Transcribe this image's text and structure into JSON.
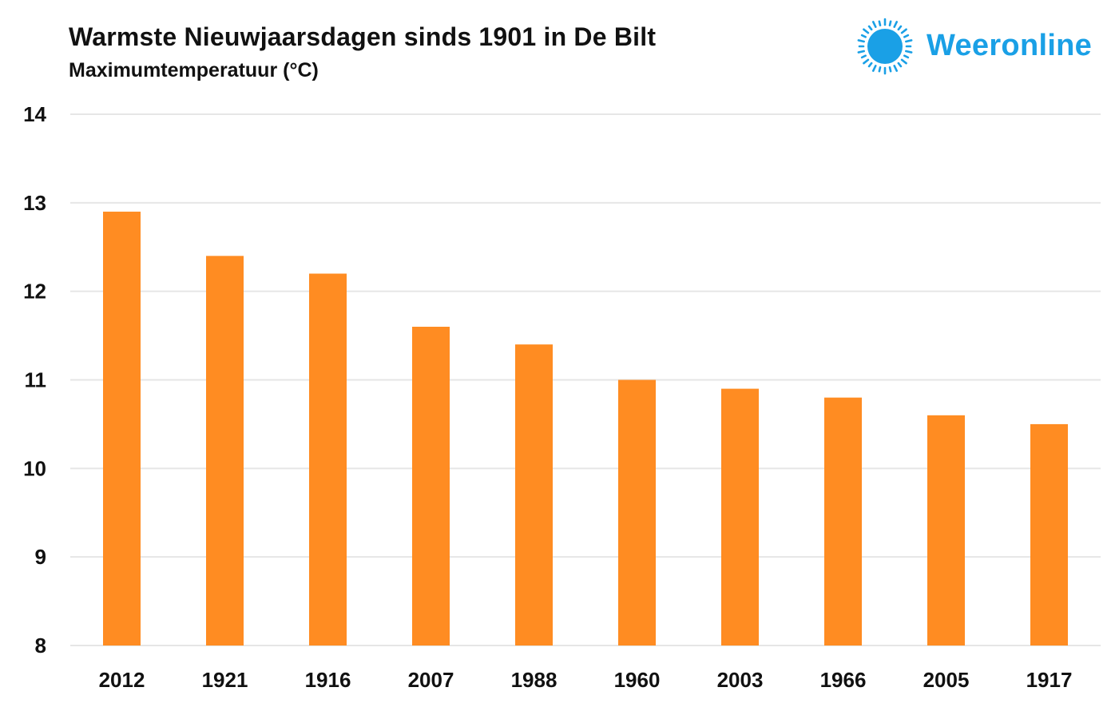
{
  "header": {
    "title": "Warmste Nieuwjaarsdagen sinds 1901 in De Bilt",
    "subtitle": "Maximumtemperatuur (°C)"
  },
  "logo": {
    "text": "Weeronline",
    "icon": "sun-icon",
    "color": "#1aa0e6"
  },
  "chart_data": {
    "type": "bar",
    "title": "Warmste Nieuwjaarsdagen sinds 1901 in De Bilt",
    "subtitle": "Maximumtemperatuur (°C)",
    "xlabel": "",
    "ylabel": "",
    "categories": [
      "2012",
      "1921",
      "1916",
      "2007",
      "1988",
      "1960",
      "2003",
      "1966",
      "2005",
      "1917"
    ],
    "values": [
      12.9,
      12.4,
      12.2,
      11.6,
      11.4,
      11.0,
      10.9,
      10.8,
      10.6,
      10.5
    ],
    "ylim": [
      8,
      14
    ],
    "yticks": [
      "8",
      "9",
      "10",
      "11",
      "12",
      "13",
      "14"
    ],
    "grid": true,
    "bar_color": "#ff8c22",
    "grid_color": "#e6e6e6"
  }
}
